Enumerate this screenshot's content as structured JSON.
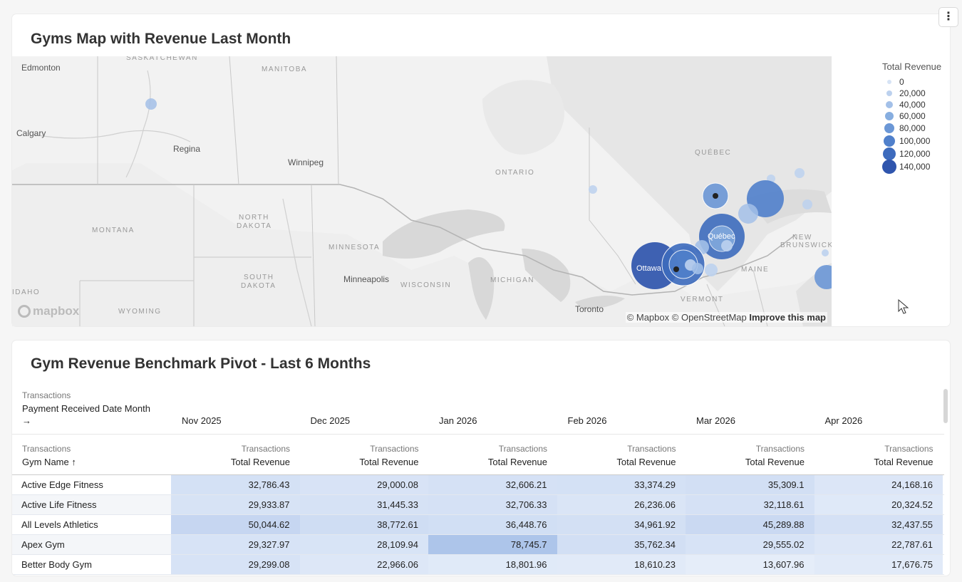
{
  "map_card": {
    "title": "Gyms Map with Revenue Last Month",
    "menu_icon": "kebab-icon",
    "places": {
      "edmonton": "Edmonton",
      "calgary": "Calgary",
      "regina": "Regina",
      "winnipeg": "Winnipeg",
      "minneapolis": "Minneapolis",
      "toronto": "Toronto",
      "ottawa": "Ottawa",
      "quebec_city": "Québec"
    },
    "regions": {
      "saskatchewan": "SASKATCHEWAN",
      "manitoba": "MANITOBA",
      "ontario": "ONTARIO",
      "quebec": "QUÉBEC",
      "montana": "MONTANA",
      "north_dakota_1": "NORTH",
      "north_dakota_2": "DAKOTA",
      "south_dakota_1": "SOUTH",
      "south_dakota_2": "DAKOTA",
      "minnesota": "MINNESOTA",
      "wisconsin": "WISCONSIN",
      "michigan": "MICHIGAN",
      "new_brunswick_1": "NEW",
      "new_brunswick_2": "BRUNSWICK",
      "maine": "MAINE",
      "vermont": "VERMONT",
      "idaho": "IDAHO",
      "wyoming": "WYOMING"
    },
    "logo": "mapbox",
    "attribution": {
      "mapbox": "© Mapbox",
      "osm": "© OpenStreetMap",
      "improve": "Improve this map"
    },
    "legend": {
      "title": "Total Revenue",
      "items": [
        "0",
        "20,000",
        "40,000",
        "60,000",
        "80,000",
        "100,000",
        "120,000",
        "140,000"
      ],
      "colors": [
        "#d6e3f5",
        "#bcd1ee",
        "#a3c0e8",
        "#87aee0",
        "#6b97d6",
        "#5080cb",
        "#3d6bbd",
        "#2f55ad"
      ]
    }
  },
  "pivot_card": {
    "title": "Gym Revenue Benchmark Pivot - Last 6 Months",
    "pivot_dimension_group": "Transactions",
    "pivot_dimension": "Payment Received Date Month",
    "pivot_arrow": "→",
    "months": [
      "Nov 2025",
      "Dec 2025",
      "Jan 2026",
      "Feb 2026",
      "Mar 2026",
      "Apr 2026"
    ],
    "row_header_group": "Transactions",
    "row_header": "Gym Name ↑",
    "measure_group": "Transactions",
    "measure": "Total Revenue",
    "rows": [
      {
        "name": "Active Edge Fitness",
        "values": [
          "32,786.43",
          "29,000.08",
          "32,606.21",
          "33,374.29",
          "35,309.1",
          "24,168.16"
        ]
      },
      {
        "name": "Active Life Fitness",
        "values": [
          "29,933.87",
          "31,445.33",
          "32,706.33",
          "26,236.06",
          "32,118.61",
          "20,324.52"
        ]
      },
      {
        "name": "All Levels Athletics",
        "values": [
          "50,044.62",
          "38,772.61",
          "36,448.76",
          "34,961.92",
          "45,289.88",
          "32,437.55"
        ]
      },
      {
        "name": "Apex Gym",
        "values": [
          "29,327.97",
          "28,109.94",
          "78,745.7",
          "35,762.34",
          "29,555.02",
          "22,787.61"
        ]
      },
      {
        "name": "Better Body Gym",
        "values": [
          "29,299.08",
          "22,966.06",
          "18,801.96",
          "18,610.23",
          "13,607.96",
          "17,676.75"
        ]
      }
    ]
  }
}
